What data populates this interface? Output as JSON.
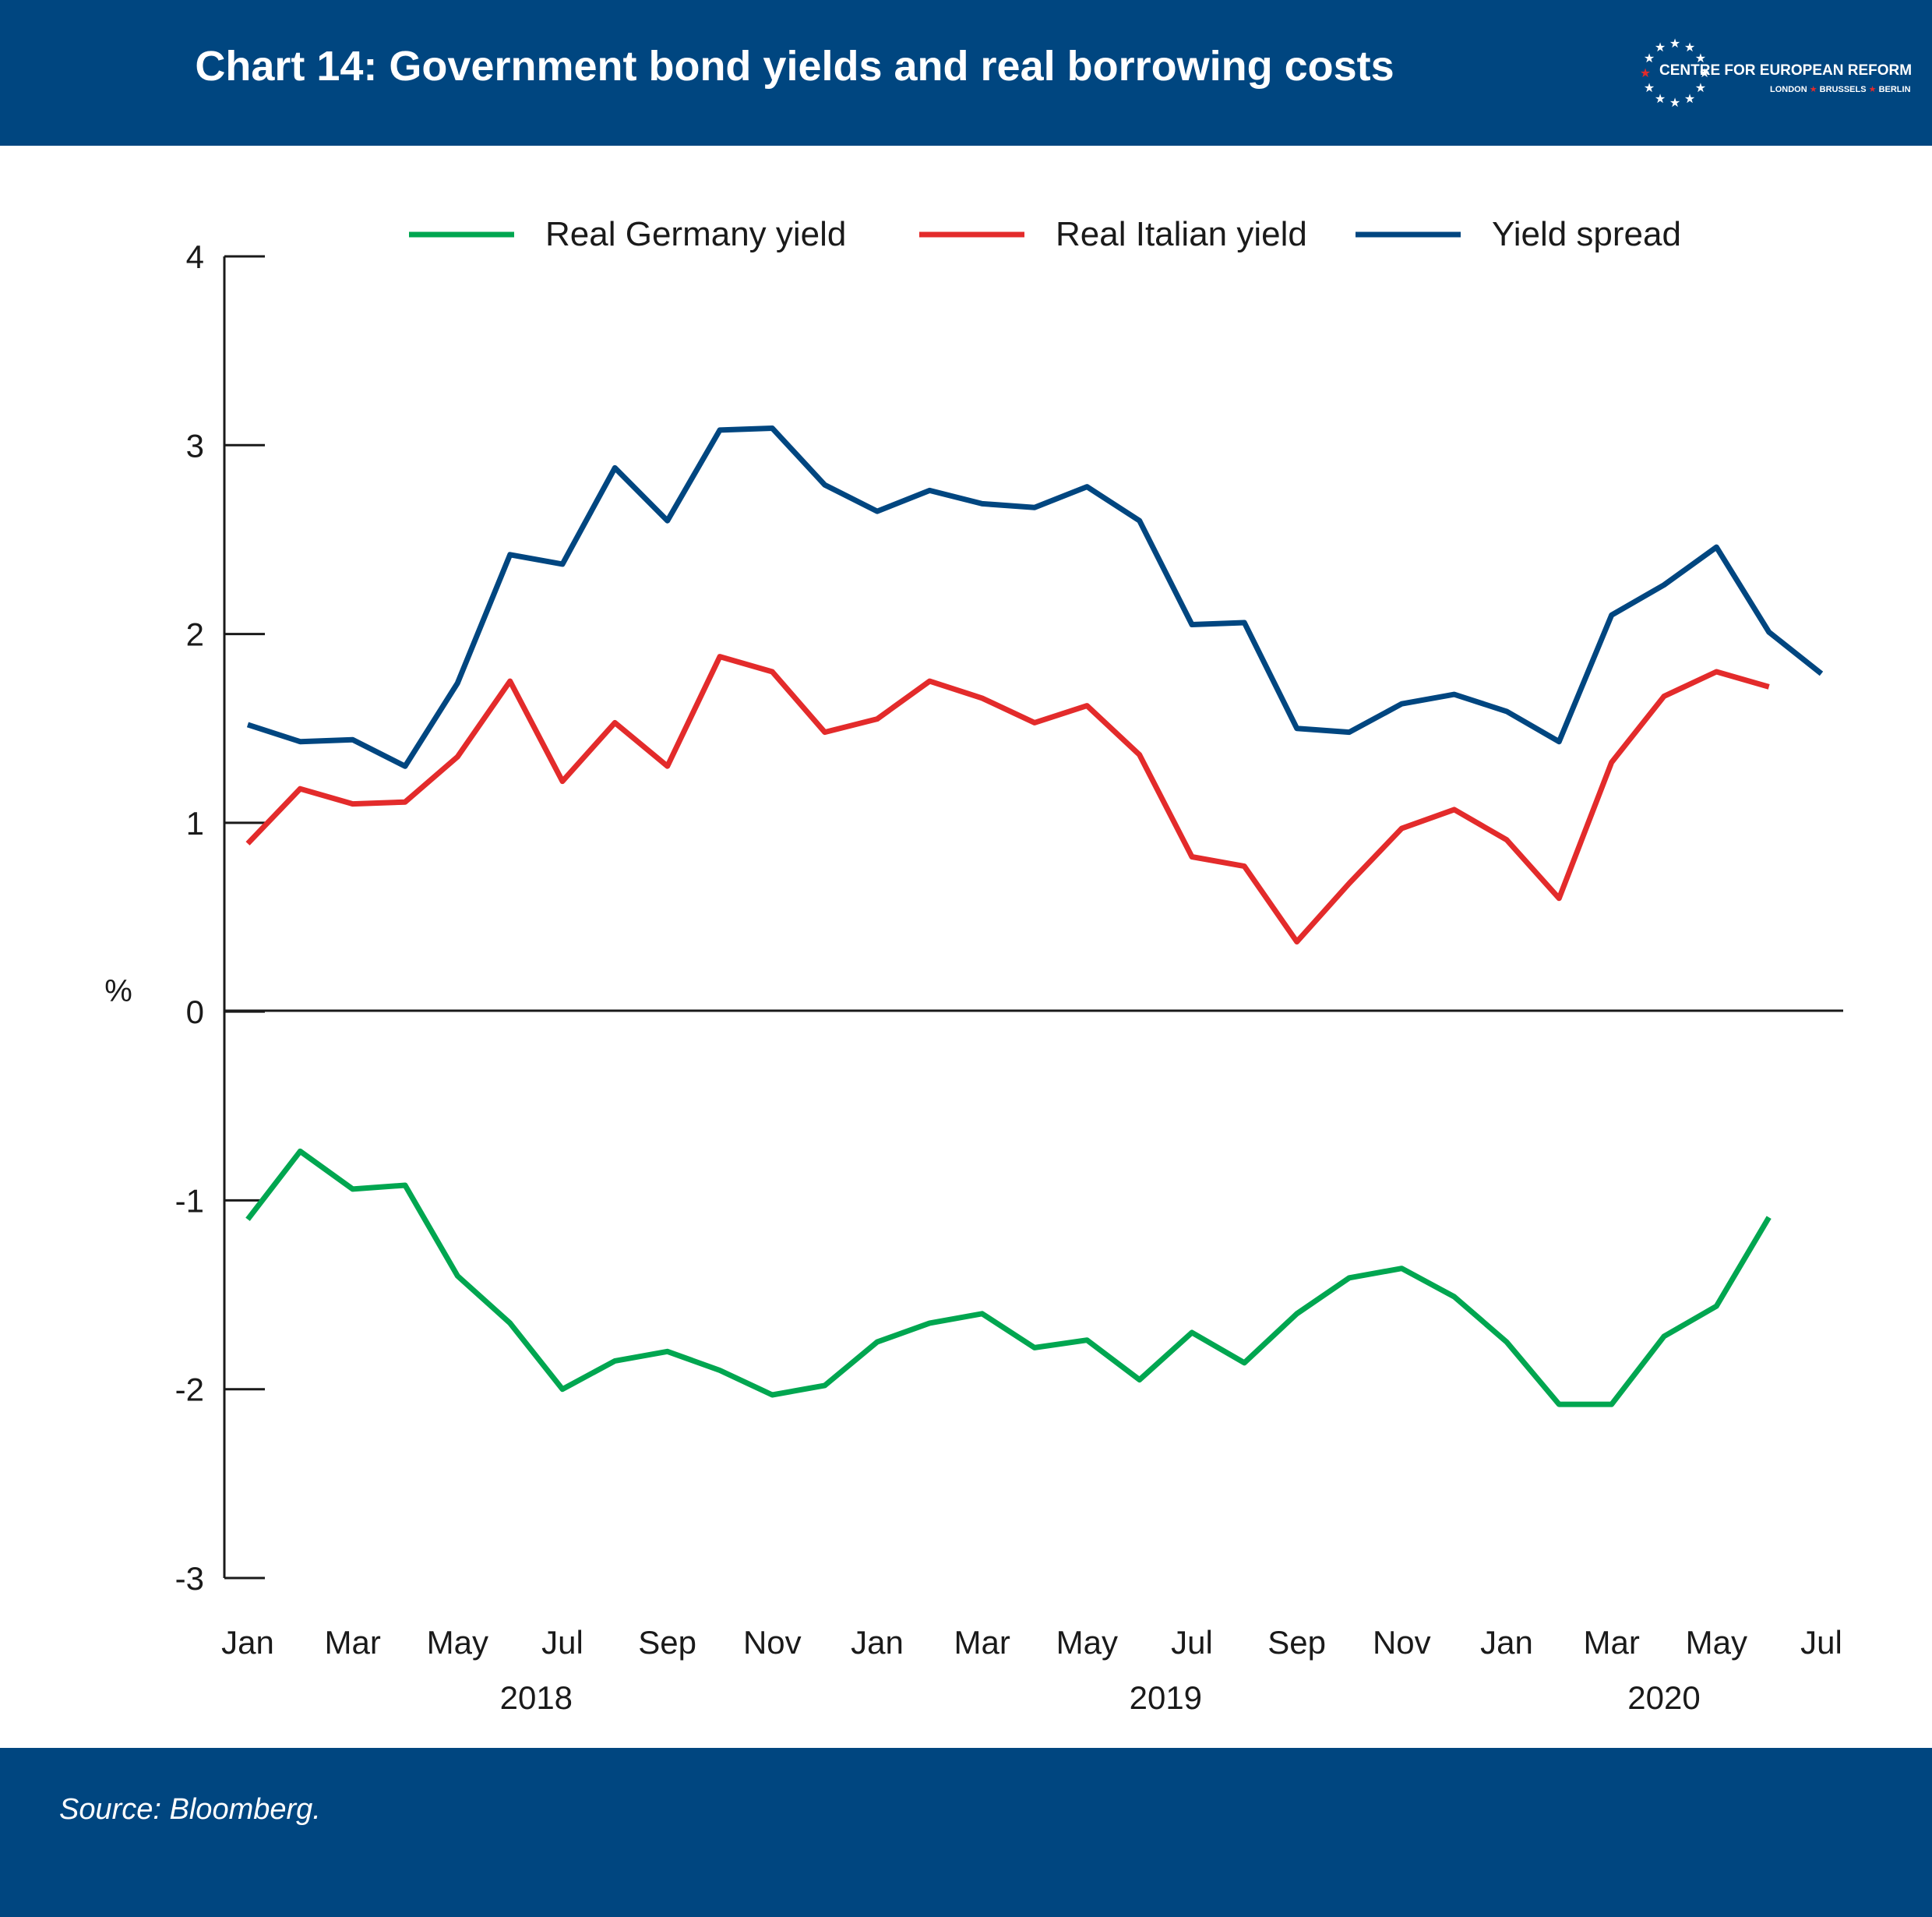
{
  "header": {
    "title": "Chart 14: Government bond yields and real borrowing costs",
    "logo": {
      "name": "CENTRE FOR EUROPEAN REFORM",
      "cities": [
        "LONDON",
        "BRUSSELS",
        "BERLIN"
      ]
    }
  },
  "footer": {
    "source": "Source: Bloomberg."
  },
  "colors": {
    "brand_blue": "#004680",
    "germany": "#00A650",
    "italy": "#E32B2B",
    "spread": "#004680",
    "logo_star_red": "#E32B2B"
  },
  "chart_data": {
    "type": "line",
    "title": "Chart 14: Government bond yields and real borrowing costs",
    "ylabel": "%",
    "ylim": [
      -3,
      4
    ],
    "yticks": [
      4,
      3,
      2,
      1,
      0,
      -1,
      -2,
      -3
    ],
    "x_tick_labels": [
      "Jan",
      "Mar",
      "May",
      "Jul",
      "Sep",
      "Nov",
      "Jan",
      "Mar",
      "May",
      "Jul",
      "Sep",
      "Nov",
      "Jan",
      "Mar",
      "May",
      "Jul"
    ],
    "year_labels": [
      "2018",
      "2019",
      "2020"
    ],
    "x": [
      "2018-01",
      "2018-02",
      "2018-03",
      "2018-04",
      "2018-05",
      "2018-06",
      "2018-07",
      "2018-08",
      "2018-09",
      "2018-10",
      "2018-11",
      "2018-12",
      "2019-01",
      "2019-02",
      "2019-03",
      "2019-04",
      "2019-05",
      "2019-06",
      "2019-07",
      "2019-08",
      "2019-09",
      "2019-10",
      "2019-11",
      "2019-12",
      "2020-01",
      "2020-02",
      "2020-03",
      "2020-04",
      "2020-05",
      "2020-06",
      "2020-07"
    ],
    "legend": {
      "position": "top"
    },
    "series": [
      {
        "name": "Real Germany yield",
        "color": "#00A650",
        "values": [
          -1.1,
          -0.74,
          -0.94,
          -0.92,
          -1.4,
          -1.65,
          -2.0,
          -1.85,
          -1.8,
          -1.9,
          -2.03,
          -1.98,
          -1.75,
          -1.65,
          -1.6,
          -1.78,
          -1.74,
          -1.95,
          -1.7,
          -1.86,
          -1.6,
          -1.41,
          -1.36,
          -1.51,
          -1.75,
          -2.08,
          -2.08,
          -1.72,
          -1.56,
          -1.09,
          null
        ]
      },
      {
        "name": "Real Italian yield",
        "color": "#E32B2B",
        "values": [
          0.89,
          1.18,
          1.1,
          1.11,
          1.35,
          1.75,
          1.22,
          1.53,
          1.3,
          1.88,
          1.8,
          1.48,
          1.55,
          1.75,
          1.66,
          1.53,
          1.62,
          1.36,
          0.82,
          0.77,
          0.37,
          0.68,
          0.97,
          1.07,
          0.91,
          0.6,
          1.32,
          1.67,
          1.8,
          1.72,
          null
        ]
      },
      {
        "name": "Yield spread",
        "color": "#004680",
        "values": [
          1.52,
          1.43,
          1.44,
          1.3,
          1.74,
          2.42,
          2.37,
          2.88,
          2.6,
          3.08,
          3.09,
          2.79,
          2.65,
          2.76,
          2.69,
          2.67,
          2.78,
          2.6,
          2.05,
          2.06,
          1.5,
          1.48,
          1.63,
          1.68,
          1.59,
          1.43,
          2.1,
          2.26,
          2.46,
          2.01,
          1.79
        ]
      }
    ]
  }
}
